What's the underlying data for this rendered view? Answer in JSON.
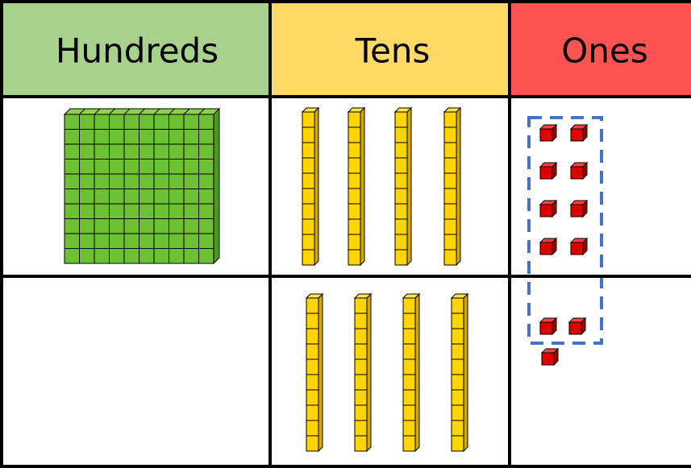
{
  "table": {
    "headers": [
      "Hundreds",
      "Tens",
      "Ones"
    ]
  }
}
